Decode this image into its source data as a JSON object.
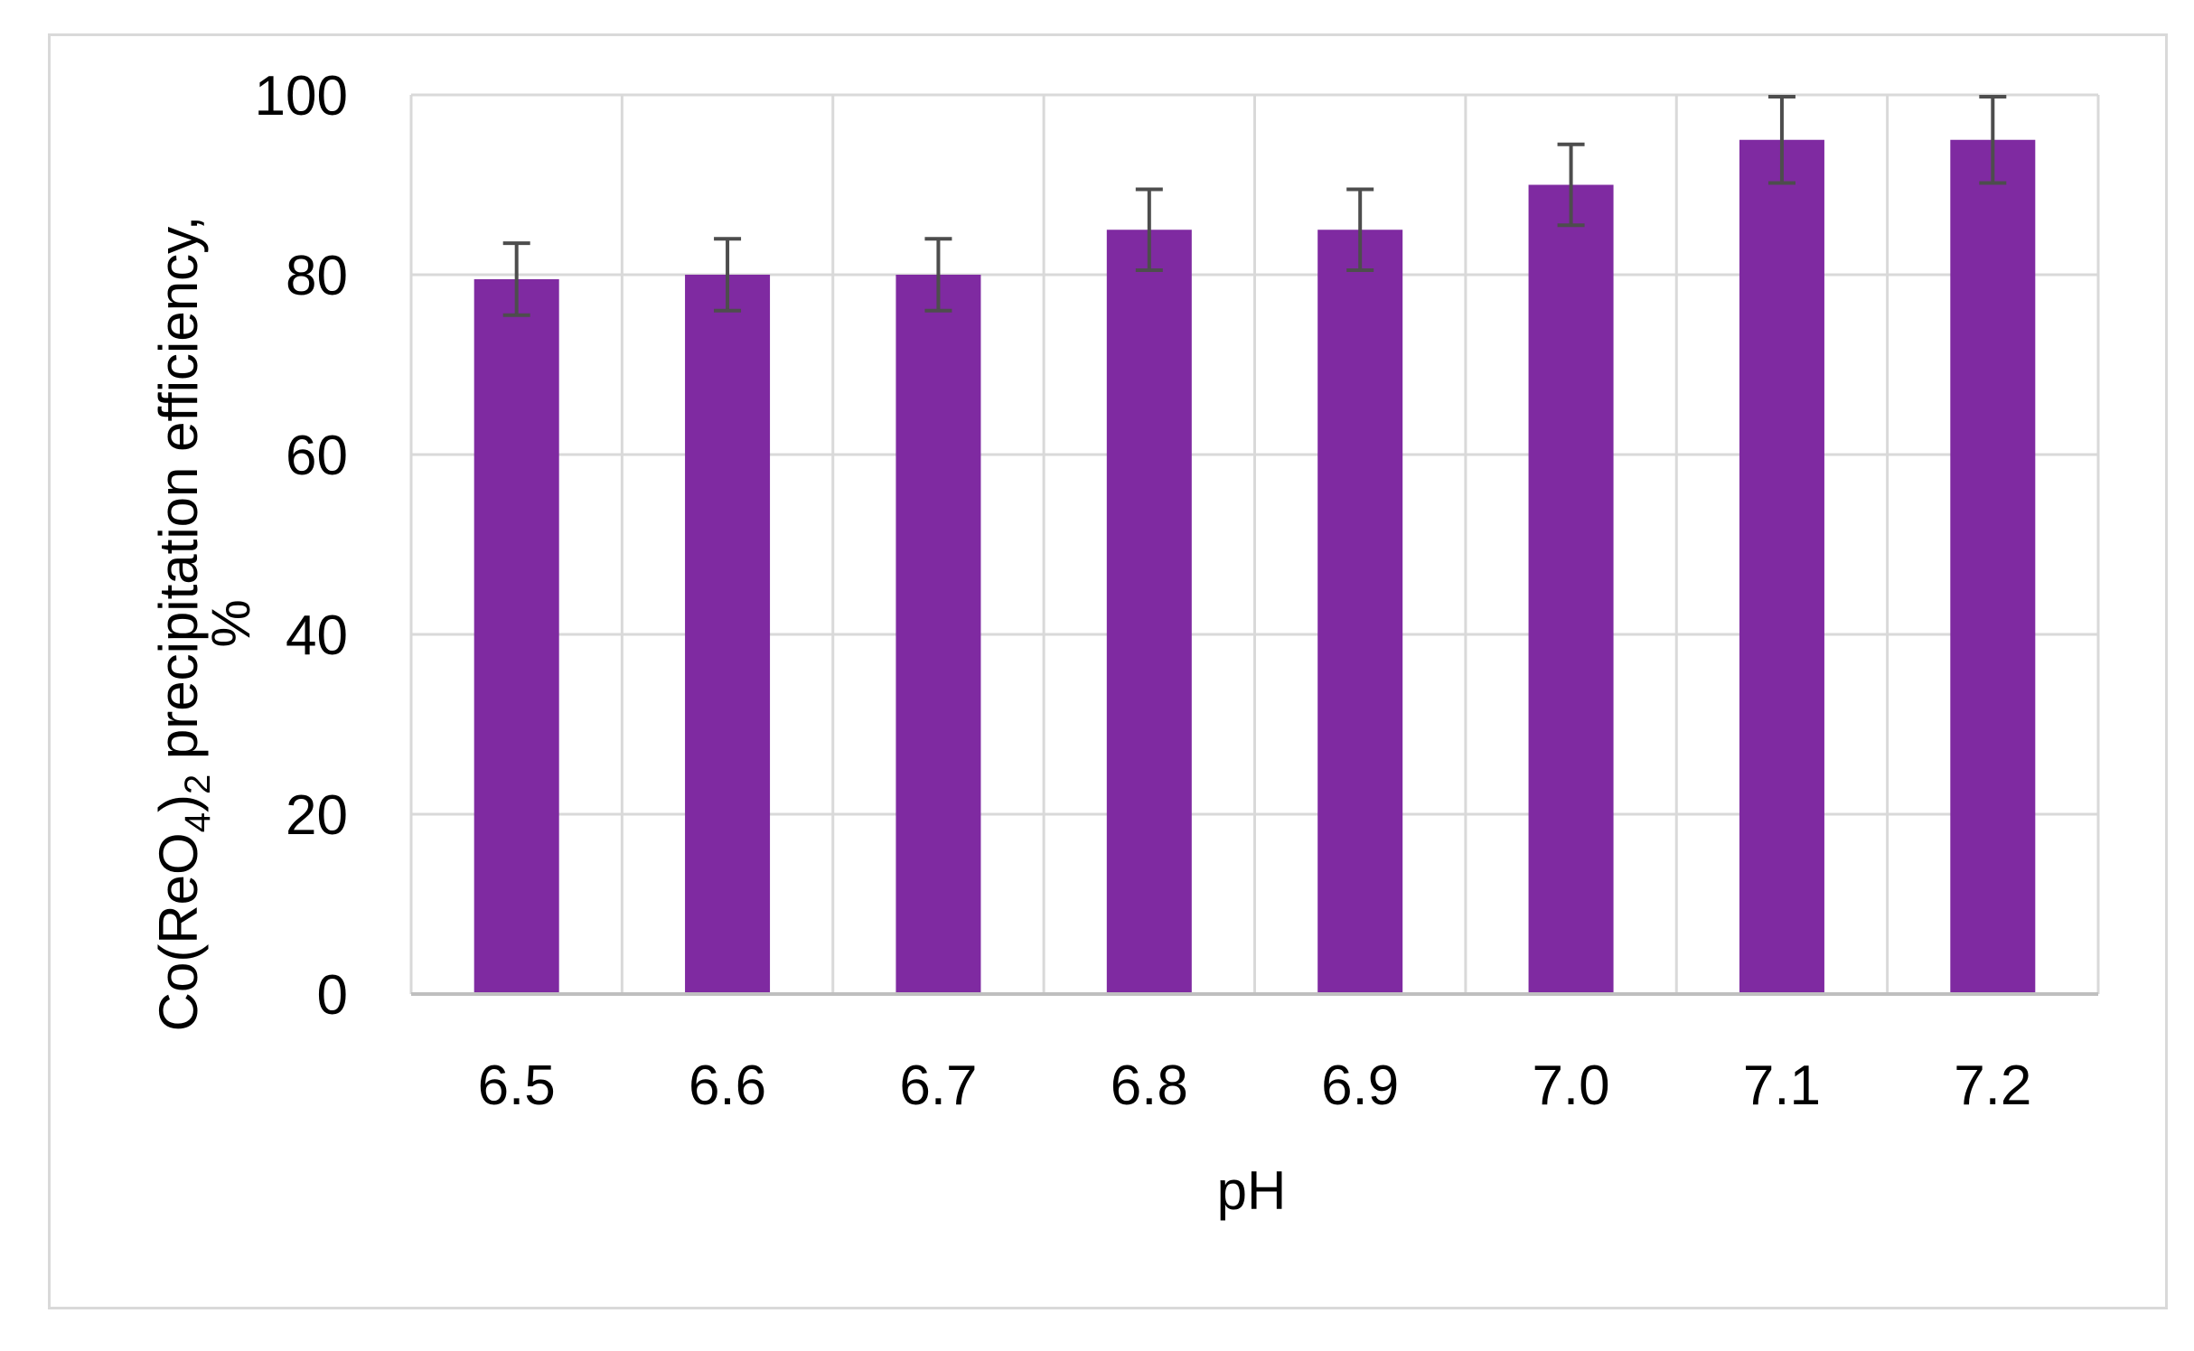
{
  "chart_data": {
    "type": "bar",
    "categories": [
      "6.5",
      "6.6",
      "6.7",
      "6.8",
      "6.9",
      "7.0",
      "7.1",
      "7.2"
    ],
    "values": [
      79.5,
      80,
      80,
      85,
      85,
      90,
      95,
      95
    ],
    "error": [
      4,
      4,
      4,
      4.5,
      4.5,
      4.5,
      4.8,
      4.8
    ],
    "title": "",
    "xlabel": "pH",
    "ylabel": {
      "prefix": "Co(ReO",
      "sub1": "4",
      "mid": ")",
      "sub2": "2",
      "suffix": " precipitation efficiency,",
      "line2": "%"
    },
    "ylim": [
      0,
      100
    ],
    "yticks": [
      "0",
      "20",
      "40",
      "60",
      "80",
      "100"
    ],
    "grid": true,
    "legend": "none",
    "colors": {
      "bar": "#7f2aa1",
      "error_bar": "#4d4d4d",
      "grid": "#d9d9d9",
      "axis": "#bfbfbf"
    }
  }
}
